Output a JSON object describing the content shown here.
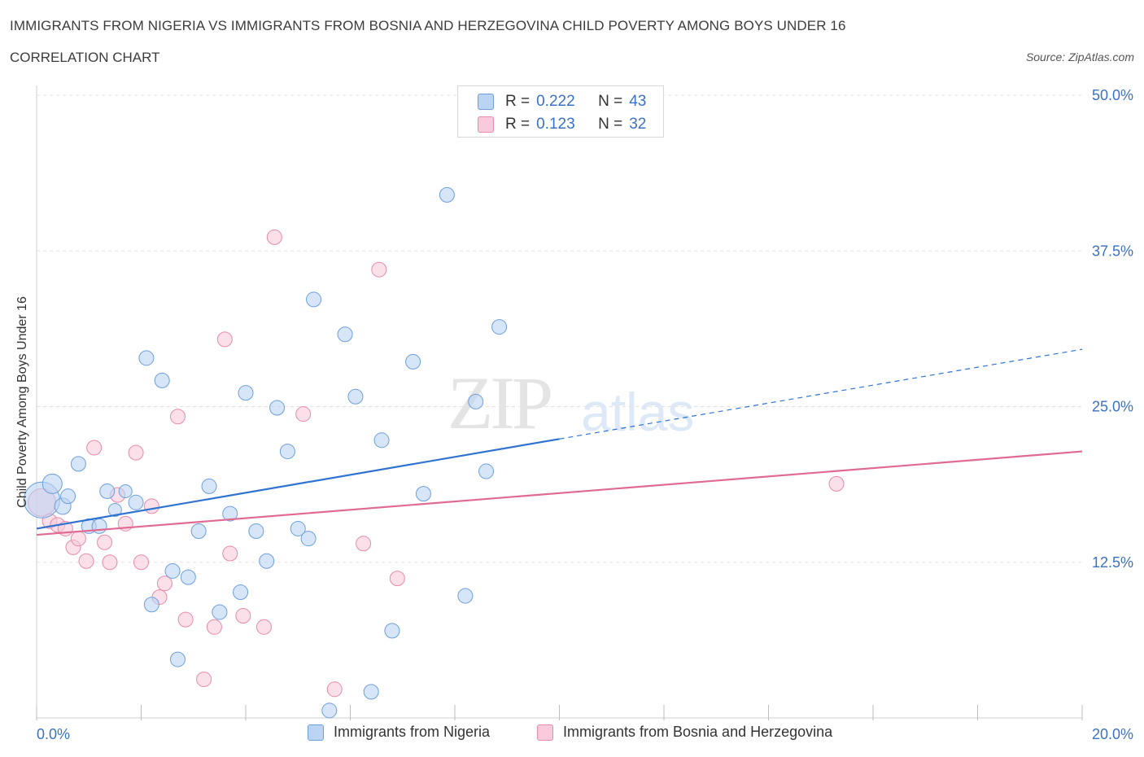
{
  "header": {
    "title": "IMMIGRANTS FROM NIGERIA VS IMMIGRANTS FROM BOSNIA AND HERZEGOVINA CHILD POVERTY AMONG BOYS UNDER 16",
    "subtitle": "CORRELATION CHART",
    "source": "Source: ZipAtlas.com"
  },
  "watermark": {
    "zip": "ZIP",
    "atlas": "atlas"
  },
  "legend_top": {
    "rows": [
      {
        "r_label": "R =",
        "r_value": "0.222",
        "n_label": "N =",
        "n_value": "43"
      },
      {
        "r_label": "R =",
        "r_value": "0.123",
        "n_label": "N =",
        "n_value": "32"
      }
    ]
  },
  "colors": {
    "nigeria_fill": "#bcd4f4",
    "nigeria_stroke": "#6d9fd9",
    "nigeria_line": "#2f73d1",
    "bosnia_fill": "#f9cadb",
    "bosnia_stroke": "#e88aab",
    "bosnia_line": "#e06a94",
    "axis_text": "#3a72c4",
    "grid": "#e2e2e2"
  },
  "chart_data": {
    "type": "scatter",
    "title": "IMMIGRANTS FROM NIGERIA VS IMMIGRANTS FROM BOSNIA AND HERZEGOVINA CHILD POVERTY AMONG BOYS UNDER 16",
    "xlabel": "",
    "ylabel": "Child Poverty Among Boys Under 16",
    "xlim": [
      0,
      20
    ],
    "ylim": [
      0,
      50
    ],
    "x_tick_labels": [
      "0.0%",
      "20.0%"
    ],
    "y_ticks": [
      12.5,
      25.0,
      37.5,
      50.0
    ],
    "y_tick_labels": [
      "12.5%",
      "25.0%",
      "37.5%",
      "50.0%"
    ],
    "grid": true,
    "legend_position": "bottom",
    "series": [
      {
        "name": "Immigrants from Nigeria",
        "r": 0.222,
        "n": 43,
        "trend": {
          "x0": 0.0,
          "y0": 15.2,
          "x1": 10.0,
          "y1": 22.4,
          "dash_to_x": 20.0,
          "dash_to_y": 29.6
        },
        "points": [
          [
            0.1,
            17.5,
            22
          ],
          [
            0.3,
            18.8,
            12
          ],
          [
            0.5,
            17.0,
            10
          ],
          [
            0.6,
            17.8,
            9
          ],
          [
            0.8,
            20.4,
            9
          ],
          [
            1.0,
            15.4,
            9
          ],
          [
            1.2,
            15.4,
            9
          ],
          [
            1.35,
            18.2,
            9
          ],
          [
            1.5,
            16.7,
            8
          ],
          [
            1.7,
            18.2,
            8
          ],
          [
            1.9,
            17.3,
            9
          ],
          [
            2.1,
            28.9,
            9
          ],
          [
            2.2,
            9.1,
            9
          ],
          [
            2.4,
            27.1,
            9
          ],
          [
            2.6,
            11.8,
            9
          ],
          [
            2.7,
            4.7,
            9
          ],
          [
            2.9,
            11.3,
            9
          ],
          [
            3.1,
            15.0,
            9
          ],
          [
            3.3,
            18.6,
            9
          ],
          [
            3.5,
            8.5,
            9
          ],
          [
            3.7,
            16.4,
            9
          ],
          [
            3.9,
            10.1,
            9
          ],
          [
            4.0,
            26.1,
            9
          ],
          [
            4.2,
            15.0,
            9
          ],
          [
            4.4,
            12.6,
            9
          ],
          [
            4.6,
            24.9,
            9
          ],
          [
            4.8,
            21.4,
            9
          ],
          [
            5.0,
            15.2,
            9
          ],
          [
            5.2,
            14.4,
            9
          ],
          [
            5.3,
            33.6,
            9
          ],
          [
            5.6,
            0.6,
            9
          ],
          [
            5.9,
            30.8,
            9
          ],
          [
            6.1,
            25.8,
            9
          ],
          [
            6.4,
            2.1,
            9
          ],
          [
            6.6,
            22.3,
            9
          ],
          [
            6.8,
            7.0,
            9
          ],
          [
            7.2,
            28.6,
            9
          ],
          [
            7.4,
            18.0,
            9
          ],
          [
            7.85,
            42.0,
            9
          ],
          [
            8.2,
            9.8,
            9
          ],
          [
            8.4,
            25.4,
            9
          ],
          [
            8.6,
            19.8,
            9
          ],
          [
            8.85,
            31.4,
            9
          ]
        ]
      },
      {
        "name": "Immigrants from Bosnia and Herzegovina",
        "r": 0.123,
        "n": 32,
        "trend": {
          "x0": 0.0,
          "y0": 14.7,
          "x1": 20.0,
          "y1": 21.4
        },
        "points": [
          [
            0.1,
            17.3,
            17
          ],
          [
            0.25,
            15.8,
            9
          ],
          [
            0.4,
            15.5,
            9
          ],
          [
            0.55,
            15.2,
            9
          ],
          [
            0.7,
            13.7,
            9
          ],
          [
            0.8,
            14.4,
            9
          ],
          [
            0.95,
            12.6,
            9
          ],
          [
            1.1,
            21.7,
            9
          ],
          [
            1.3,
            14.1,
            9
          ],
          [
            1.4,
            12.5,
            9
          ],
          [
            1.55,
            17.9,
            9
          ],
          [
            1.7,
            15.6,
            9
          ],
          [
            1.9,
            21.3,
            9
          ],
          [
            2.0,
            12.5,
            9
          ],
          [
            2.2,
            17.0,
            9
          ],
          [
            2.35,
            9.7,
            9
          ],
          [
            2.45,
            10.8,
            9
          ],
          [
            2.7,
            24.2,
            9
          ],
          [
            2.85,
            7.9,
            9
          ],
          [
            3.2,
            3.1,
            9
          ],
          [
            3.4,
            7.3,
            9
          ],
          [
            3.6,
            30.4,
            9
          ],
          [
            3.7,
            13.2,
            9
          ],
          [
            3.95,
            8.2,
            9
          ],
          [
            4.35,
            7.3,
            9
          ],
          [
            4.55,
            38.6,
            9
          ],
          [
            5.1,
            24.4,
            9
          ],
          [
            5.7,
            2.3,
            9
          ],
          [
            6.25,
            14.0,
            9
          ],
          [
            6.55,
            36.0,
            9
          ],
          [
            6.9,
            11.2,
            9
          ],
          [
            15.3,
            18.8,
            9
          ]
        ]
      }
    ]
  }
}
